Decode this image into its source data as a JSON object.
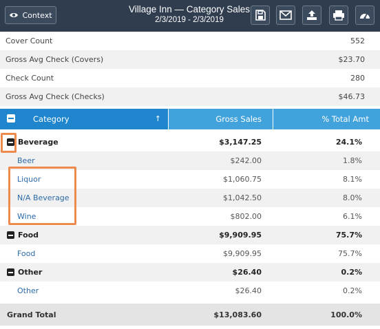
{
  "header": {
    "context_label": "Context",
    "title": "Village Inn — Category Sales",
    "date_range": "2/3/2019 - 2/3/2019",
    "icons": [
      "save-icon",
      "email-icon",
      "export-icon",
      "print-icon",
      "dashboard-icon"
    ]
  },
  "summary": [
    {
      "label": "Cover Count",
      "value": "552"
    },
    {
      "label": "Gross Avg Check (Covers)",
      "value": "$23.70"
    },
    {
      "label": "Check Count",
      "value": "280"
    },
    {
      "label": "Gross Avg Check (Checks)",
      "value": "$46.73"
    }
  ],
  "table": {
    "columns": {
      "category": "Category",
      "sort_glyph": "↑",
      "gross": "Gross Sales",
      "pct": "% Total Amt"
    },
    "rows": [
      {
        "type": "group",
        "category": "Beverage",
        "gross": "$3,147.25",
        "pct": "24.1%"
      },
      {
        "type": "item",
        "category": "Beer",
        "gross": "$242.00",
        "pct": "1.8%"
      },
      {
        "type": "item",
        "category": "Liquor",
        "gross": "$1,060.75",
        "pct": "8.1%"
      },
      {
        "type": "item",
        "category": "N/A Beverage",
        "gross": "$1,042.50",
        "pct": "8.0%"
      },
      {
        "type": "item",
        "category": "Wine",
        "gross": "$802.00",
        "pct": "6.1%"
      },
      {
        "type": "group",
        "category": "Food",
        "gross": "$9,909.95",
        "pct": "75.7%"
      },
      {
        "type": "item",
        "category": "Food",
        "gross": "$9,909.95",
        "pct": "75.7%"
      },
      {
        "type": "group",
        "category": "Other",
        "gross": "$26.40",
        "pct": "0.2%"
      },
      {
        "type": "item",
        "category": "Other",
        "gross": "$26.40",
        "pct": "0.2%"
      }
    ],
    "total": {
      "label": "Grand Total",
      "gross": "$13,083.60",
      "pct": "100.0%"
    }
  },
  "colors": {
    "header_bg": "#2f3d4f",
    "table_header": "#41a2dc",
    "category_header": "#1f86cd",
    "highlight": "#ee8a4e",
    "link": "#2c6aa8"
  }
}
